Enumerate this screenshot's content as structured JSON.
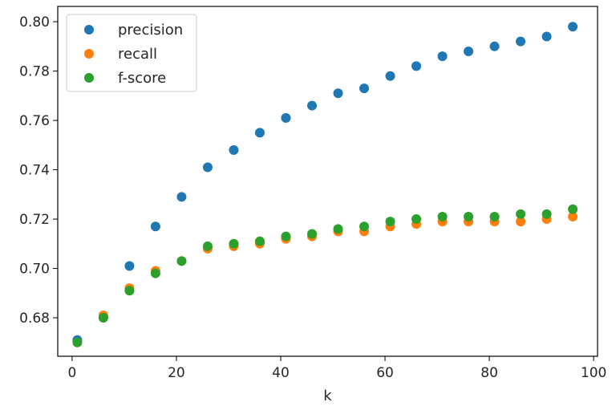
{
  "chart_data": {
    "type": "scatter",
    "title": "",
    "xlabel": "k",
    "ylabel": "",
    "xlim": [
      -2.75,
      100.75
    ],
    "ylim": [
      0.6644,
      0.8062
    ],
    "xticks": [
      0,
      20,
      40,
      60,
      80,
      100
    ],
    "xtick_labels": [
      "0",
      "20",
      "40",
      "60",
      "80",
      "100"
    ],
    "yticks": [
      0.68,
      0.7,
      0.72,
      0.74,
      0.76,
      0.78,
      0.8
    ],
    "ytick_labels": [
      "0.68",
      "0.70",
      "0.72",
      "0.74",
      "0.76",
      "0.78",
      "0.80"
    ],
    "grid": false,
    "legend_position": "top-left",
    "x": [
      1,
      6,
      11,
      16,
      21,
      26,
      31,
      36,
      41,
      46,
      51,
      56,
      61,
      66,
      71,
      76,
      81,
      86,
      91,
      96
    ],
    "series": [
      {
        "name": "precision",
        "color": "#1f77b4",
        "values": [
          0.671,
          0.68,
          0.701,
          0.717,
          0.729,
          0.741,
          0.748,
          0.755,
          0.761,
          0.766,
          0.771,
          0.773,
          0.778,
          0.782,
          0.786,
          0.788,
          0.79,
          0.792,
          0.794,
          0.798
        ]
      },
      {
        "name": "recall",
        "color": "#ff7f0e",
        "values": [
          0.67,
          0.681,
          0.692,
          0.699,
          0.703,
          0.708,
          0.709,
          0.71,
          0.712,
          0.713,
          0.715,
          0.715,
          0.717,
          0.718,
          0.719,
          0.719,
          0.719,
          0.719,
          0.72,
          0.721
        ]
      },
      {
        "name": "f-score",
        "color": "#2ca02c",
        "values": [
          0.67,
          0.68,
          0.691,
          0.698,
          0.703,
          0.709,
          0.71,
          0.711,
          0.713,
          0.714,
          0.716,
          0.717,
          0.719,
          0.72,
          0.721,
          0.721,
          0.721,
          0.722,
          0.722,
          0.724
        ]
      }
    ]
  }
}
